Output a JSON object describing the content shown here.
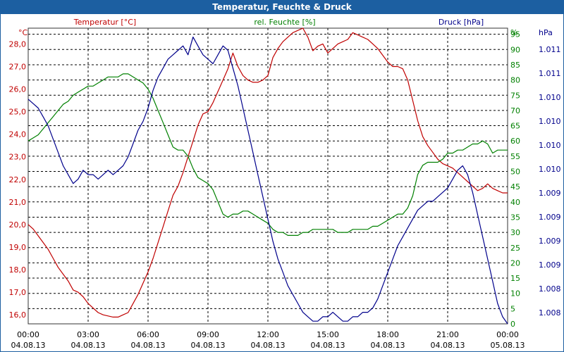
{
  "window": {
    "title": "Temperatur, Feuchte & Druck"
  },
  "chart_data": {
    "type": "line",
    "title": "Temperatur, Feuchte & Druck",
    "x_ticks": [
      {
        "time": "00:00",
        "date": "04.08.13"
      },
      {
        "time": "03:00",
        "date": "04.08.13"
      },
      {
        "time": "06:00",
        "date": "04.08.13"
      },
      {
        "time": "09:00",
        "date": "04.08.13"
      },
      {
        "time": "12:00",
        "date": "04.08.13"
      },
      {
        "time": "15:00",
        "date": "04.08.13"
      },
      {
        "time": "18:00",
        "date": "04.08.13"
      },
      {
        "time": "21:00",
        "date": "04.08.13"
      },
      {
        "time": "00:00",
        "date": "05.08.13"
      }
    ],
    "x_hours": [
      0,
      0.25,
      0.5,
      0.75,
      1,
      1.25,
      1.5,
      1.75,
      2,
      2.25,
      2.5,
      2.75,
      3,
      3.25,
      3.5,
      3.75,
      4,
      4.25,
      4.5,
      4.75,
      5,
      5.25,
      5.5,
      5.75,
      6,
      6.25,
      6.5,
      6.75,
      7,
      7.25,
      7.5,
      7.75,
      8,
      8.25,
      8.5,
      8.75,
      9,
      9.25,
      9.5,
      9.75,
      10,
      10.25,
      10.5,
      10.75,
      11,
      11.25,
      11.5,
      11.75,
      12,
      12.25,
      12.5,
      12.75,
      13,
      13.25,
      13.5,
      13.75,
      14,
      14.25,
      14.5,
      14.75,
      15,
      15.25,
      15.5,
      15.75,
      16,
      16.25,
      16.5,
      16.75,
      17,
      17.25,
      17.5,
      17.75,
      18,
      18.25,
      18.5,
      18.75,
      19,
      19.25,
      19.5,
      19.75,
      20,
      20.25,
      20.5,
      20.75,
      21,
      21.25,
      21.5,
      21.75,
      22,
      22.25,
      22.5,
      22.75,
      23,
      23.25,
      23.5,
      23.75,
      24
    ],
    "axes": {
      "left": {
        "label": "Temperatur [°C]",
        "unit": "°C",
        "ticks": [
          "28,0",
          "27,0",
          "26,0",
          "25,0",
          "24,0",
          "23,0",
          "22,0",
          "21,0",
          "20,0",
          "19,0",
          "18,0",
          "17,0",
          "16,0"
        ],
        "range": [
          15.6,
          28.7
        ]
      },
      "right_humidity": {
        "label": "rel. Feuchte [%]",
        "unit": "%",
        "ticks": [
          "95",
          "90",
          "85",
          "80",
          "75",
          "70",
          "65",
          "60",
          "55",
          "50",
          "45",
          "40",
          "35",
          "30",
          "25",
          "20",
          "15",
          "10",
          "5",
          "0"
        ],
        "range": [
          0,
          97
        ]
      },
      "right_pressure": {
        "label": "Druck [hPa]",
        "unit": "hPa",
        "ticks": [
          "1.011",
          "1.011",
          "1.010",
          "1.010",
          "1.010",
          "1.010",
          "1.009",
          "1.009",
          "1.009",
          "1.009",
          "1.008",
          "1.008"
        ],
        "range": [
          1007.87,
          1011.2
        ]
      }
    },
    "series": [
      {
        "name": "Temperatur [°C]",
        "axis": "left",
        "color": "#c00000",
        "values": [
          20.0,
          19.8,
          19.5,
          19.2,
          18.9,
          18.5,
          18.1,
          17.8,
          17.5,
          17.1,
          17.0,
          16.8,
          16.5,
          16.3,
          16.1,
          16.0,
          15.95,
          15.9,
          15.9,
          16.0,
          16.1,
          16.5,
          16.9,
          17.4,
          17.9,
          18.5,
          19.2,
          19.9,
          20.6,
          21.3,
          21.7,
          22.3,
          23.0,
          23.7,
          24.4,
          24.9,
          25.0,
          25.4,
          25.9,
          26.4,
          26.9,
          27.6,
          27.0,
          26.6,
          26.4,
          26.3,
          26.3,
          26.4,
          26.6,
          27.4,
          27.8,
          28.1,
          28.3,
          28.5,
          28.6,
          28.7,
          28.3,
          27.7,
          27.9,
          28.0,
          27.6,
          27.8,
          28.0,
          28.1,
          28.2,
          28.5,
          28.4,
          28.3,
          28.2,
          28.0,
          27.8,
          27.5,
          27.2,
          27.0,
          27.0,
          26.9,
          26.4,
          25.5,
          24.6,
          23.9,
          23.5,
          23.2,
          22.9,
          22.7,
          22.6,
          22.5,
          22.3,
          22.1,
          21.9,
          21.7,
          21.5,
          21.6,
          21.8,
          21.6,
          21.5,
          21.4,
          21.4
        ]
      },
      {
        "name": "rel. Feuchte [%]",
        "axis": "right_humidity",
        "color": "#008000",
        "values": [
          60,
          61,
          62,
          64,
          66,
          68,
          70,
          72,
          73,
          75,
          76,
          77,
          78,
          78,
          79,
          80,
          81,
          81,
          81,
          82,
          82,
          81,
          80,
          79,
          77,
          74,
          70,
          66,
          62,
          58,
          57,
          57,
          55,
          51,
          48,
          47,
          46,
          44,
          40,
          36,
          35,
          36,
          36,
          37,
          37,
          36,
          35,
          34,
          33,
          31,
          30,
          30,
          29,
          29,
          29,
          30,
          30,
          31,
          31,
          31,
          31,
          31,
          30,
          30,
          30,
          31,
          31,
          31,
          31,
          32,
          32,
          33,
          34,
          35,
          36,
          36,
          38,
          42,
          49,
          52,
          53,
          53,
          53,
          54,
          56,
          56,
          57,
          57,
          58,
          59,
          59,
          60,
          59,
          56,
          57,
          57,
          57
        ]
      },
      {
        "name": "Druck [hPa]",
        "axis": "right_pressure",
        "color": "#00008b",
        "values": [
          1010.4,
          1010.35,
          1010.3,
          1010.2,
          1010.1,
          1009.95,
          1009.8,
          1009.65,
          1009.55,
          1009.45,
          1009.5,
          1009.6,
          1009.55,
          1009.55,
          1009.5,
          1009.55,
          1009.6,
          1009.55,
          1009.6,
          1009.65,
          1009.75,
          1009.9,
          1010.05,
          1010.15,
          1010.3,
          1010.5,
          1010.65,
          1010.75,
          1010.85,
          1010.9,
          1010.95,
          1011.0,
          1010.9,
          1011.1,
          1011.0,
          1010.9,
          1010.85,
          1010.8,
          1010.9,
          1011.0,
          1010.95,
          1010.75,
          1010.55,
          1010.3,
          1010.05,
          1009.8,
          1009.55,
          1009.3,
          1009.05,
          1008.8,
          1008.6,
          1008.45,
          1008.3,
          1008.2,
          1008.1,
          1008.0,
          1007.95,
          1007.9,
          1007.9,
          1007.95,
          1007.95,
          1008.0,
          1007.95,
          1007.9,
          1007.9,
          1007.95,
          1007.95,
          1008.0,
          1008.0,
          1008.05,
          1008.15,
          1008.3,
          1008.45,
          1008.6,
          1008.75,
          1008.85,
          1008.95,
          1009.05,
          1009.15,
          1009.2,
          1009.25,
          1009.25,
          1009.3,
          1009.35,
          1009.4,
          1009.5,
          1009.6,
          1009.65,
          1009.55,
          1009.35,
          1009.1,
          1008.85,
          1008.6,
          1008.35,
          1008.1,
          1007.95,
          1007.87
        ]
      }
    ]
  }
}
